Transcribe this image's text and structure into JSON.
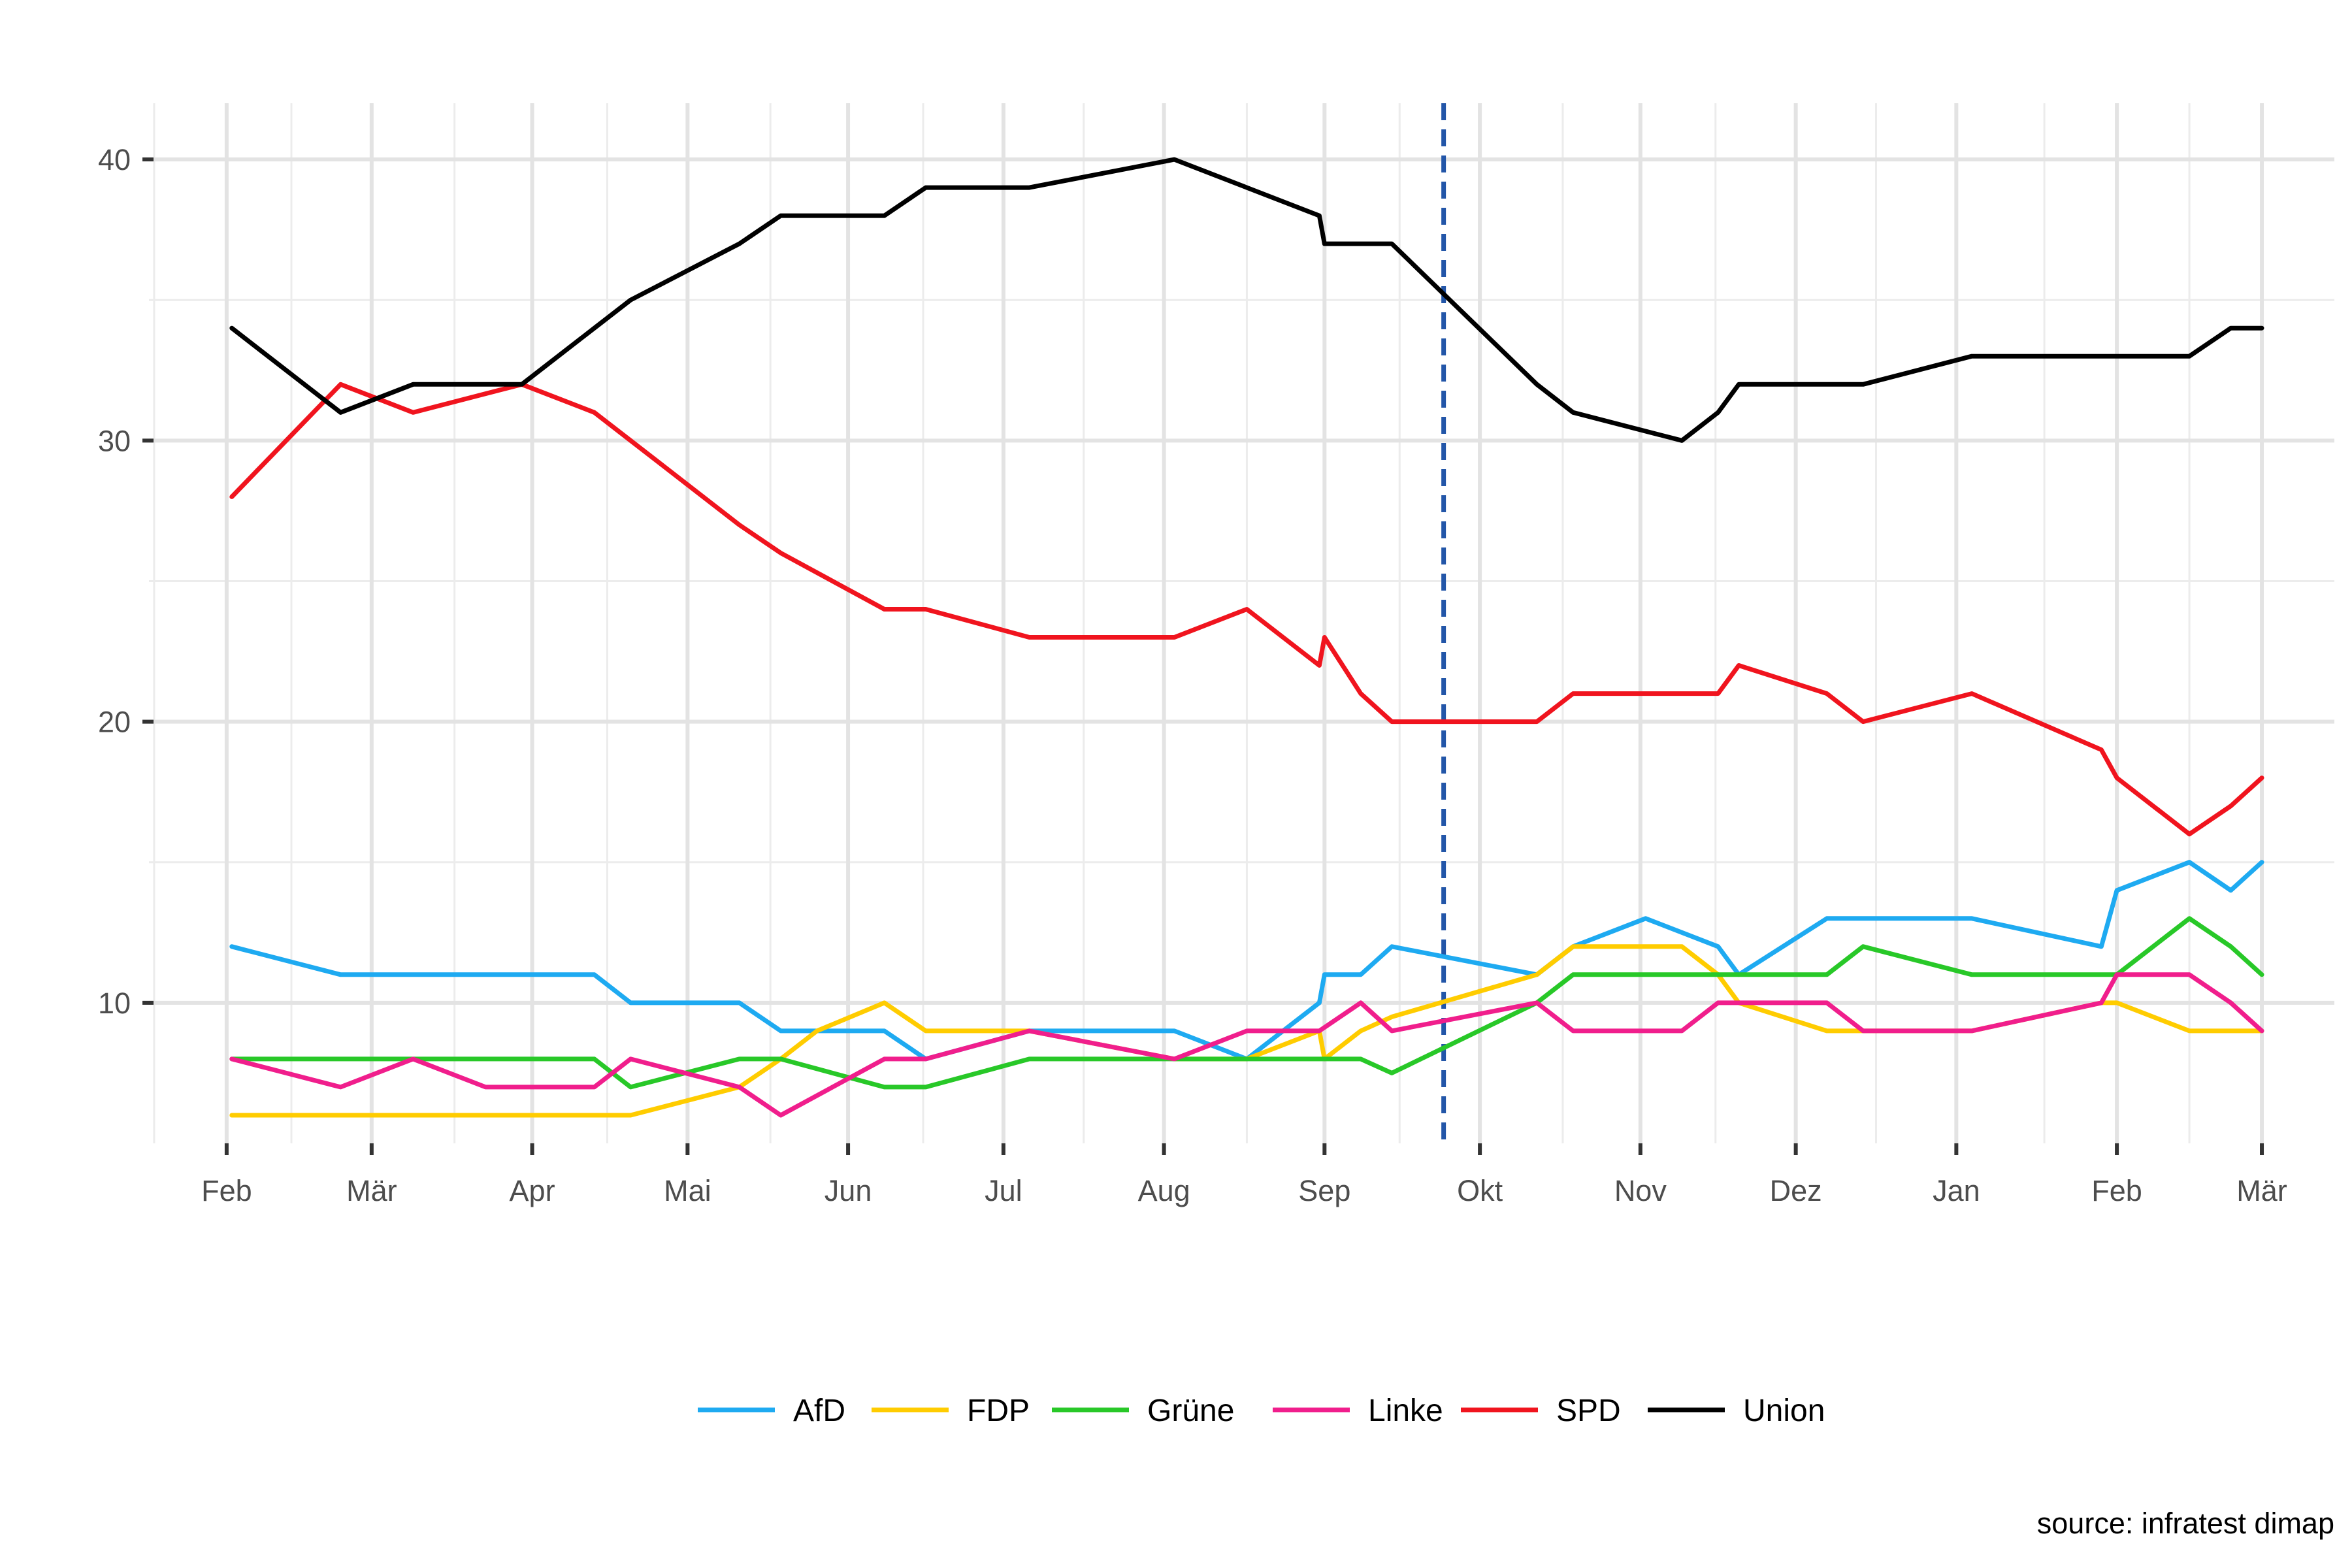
{
  "chart_data": {
    "type": "line",
    "title": "",
    "xlabel": "",
    "ylabel": "",
    "caption": "source: infratest dimap",
    "ylim": [
      5,
      42
    ],
    "y_ticks": [
      10,
      20,
      30,
      40
    ],
    "x_tick_labels": [
      "Feb",
      "Mär",
      "Apr",
      "Mai",
      "Jun",
      "Jul",
      "Aug",
      "Sep",
      "Okt",
      "Nov",
      "Dez",
      "Jan",
      "Feb",
      "Mär"
    ],
    "x_tick_dates": [
      "2017-02-01",
      "2017-03-01",
      "2017-04-01",
      "2017-05-01",
      "2017-06-01",
      "2017-07-01",
      "2017-08-01",
      "2017-09-01",
      "2017-10-01",
      "2017-11-01",
      "2017-12-01",
      "2018-01-01",
      "2018-02-01",
      "2018-03-01"
    ],
    "xlim": [
      "2017-01-17",
      "2018-03-15"
    ],
    "grid": true,
    "legend_position": "bottom",
    "vline": {
      "date": "2017-09-24",
      "color": "#2356A8",
      "style": "dashed"
    },
    "series": [
      {
        "name": "AfD",
        "color": "#1EAAF1",
        "points": [
          [
            "2017-02-02",
            12
          ],
          [
            "2017-02-23",
            11
          ],
          [
            "2017-03-09",
            11
          ],
          [
            "2017-03-30",
            11
          ],
          [
            "2017-04-13",
            11
          ],
          [
            "2017-04-20",
            10
          ],
          [
            "2017-05-11",
            10
          ],
          [
            "2017-05-19",
            9
          ],
          [
            "2017-06-08",
            9
          ],
          [
            "2017-06-16",
            8
          ],
          [
            "2017-07-06",
            9
          ],
          [
            "2017-08-03",
            9
          ],
          [
            "2017-08-17",
            8
          ],
          [
            "2017-08-31",
            10
          ],
          [
            "2017-09-01",
            11
          ],
          [
            "2017-09-08",
            11
          ],
          [
            "2017-09-14",
            12
          ],
          [
            "2017-10-12",
            11
          ],
          [
            "2017-10-19",
            12
          ],
          [
            "2017-11-02",
            13
          ],
          [
            "2017-11-16",
            12
          ],
          [
            "2017-11-20",
            11
          ],
          [
            "2017-12-07",
            13
          ],
          [
            "2017-12-14",
            13
          ],
          [
            "2018-01-04",
            13
          ],
          [
            "2018-01-29",
            12
          ],
          [
            "2018-02-01",
            14
          ],
          [
            "2018-02-15",
            15
          ],
          [
            "2018-02-23",
            14
          ],
          [
            "2018-03-01",
            15
          ]
        ]
      },
      {
        "name": "FDP",
        "color": "#FFCC00",
        "points": [
          [
            "2017-02-02",
            6
          ],
          [
            "2017-02-23",
            6
          ],
          [
            "2017-03-09",
            6
          ],
          [
            "2017-03-30",
            6
          ],
          [
            "2017-04-13",
            6
          ],
          [
            "2017-04-20",
            6
          ],
          [
            "2017-05-11",
            7
          ],
          [
            "2017-05-19",
            8
          ],
          [
            "2017-05-26",
            9
          ],
          [
            "2017-06-08",
            10
          ],
          [
            "2017-06-16",
            9
          ],
          [
            "2017-07-06",
            9
          ],
          [
            "2017-08-03",
            8
          ],
          [
            "2017-08-17",
            8
          ],
          [
            "2017-08-31",
            9
          ],
          [
            "2017-09-01",
            8
          ],
          [
            "2017-09-08",
            9
          ],
          [
            "2017-09-14",
            9.5
          ],
          [
            "2017-10-12",
            11
          ],
          [
            "2017-10-19",
            12
          ],
          [
            "2017-11-09",
            12
          ],
          [
            "2017-11-16",
            11
          ],
          [
            "2017-11-20",
            10
          ],
          [
            "2017-12-07",
            9
          ],
          [
            "2017-12-14",
            9
          ],
          [
            "2018-01-04",
            9
          ],
          [
            "2018-01-29",
            10
          ],
          [
            "2018-02-01",
            10
          ],
          [
            "2018-02-15",
            9
          ],
          [
            "2018-03-01",
            9
          ]
        ]
      },
      {
        "name": "Grüne",
        "color": "#28C828",
        "points": [
          [
            "2017-02-02",
            8
          ],
          [
            "2017-02-23",
            8
          ],
          [
            "2017-03-09",
            8
          ],
          [
            "2017-03-30",
            8
          ],
          [
            "2017-04-13",
            8
          ],
          [
            "2017-04-20",
            7
          ],
          [
            "2017-05-11",
            8
          ],
          [
            "2017-05-19",
            8
          ],
          [
            "2017-06-08",
            7
          ],
          [
            "2017-06-16",
            7
          ],
          [
            "2017-07-06",
            8
          ],
          [
            "2017-08-03",
            8
          ],
          [
            "2017-08-17",
            8
          ],
          [
            "2017-08-31",
            8
          ],
          [
            "2017-09-08",
            8
          ],
          [
            "2017-09-14",
            7.5
          ],
          [
            "2017-10-12",
            10
          ],
          [
            "2017-10-19",
            11
          ],
          [
            "2017-11-09",
            11
          ],
          [
            "2017-11-20",
            11
          ],
          [
            "2017-12-07",
            11
          ],
          [
            "2017-12-14",
            12
          ],
          [
            "2018-01-04",
            11
          ],
          [
            "2018-01-29",
            11
          ],
          [
            "2018-02-01",
            11
          ],
          [
            "2018-02-15",
            13
          ],
          [
            "2018-02-23",
            12
          ],
          [
            "2018-03-01",
            11
          ]
        ]
      },
      {
        "name": "Linke",
        "color": "#F01E8C",
        "points": [
          [
            "2017-02-02",
            8
          ],
          [
            "2017-02-23",
            7
          ],
          [
            "2017-03-09",
            8
          ],
          [
            "2017-03-23",
            7
          ],
          [
            "2017-04-13",
            7
          ],
          [
            "2017-04-20",
            8
          ],
          [
            "2017-05-11",
            7
          ],
          [
            "2017-05-19",
            6
          ],
          [
            "2017-06-08",
            8
          ],
          [
            "2017-06-16",
            8
          ],
          [
            "2017-07-06",
            9
          ],
          [
            "2017-08-03",
            8
          ],
          [
            "2017-08-17",
            9
          ],
          [
            "2017-08-31",
            9
          ],
          [
            "2017-09-08",
            10
          ],
          [
            "2017-09-14",
            9
          ],
          [
            "2017-10-12",
            10
          ],
          [
            "2017-10-19",
            9
          ],
          [
            "2017-11-09",
            9
          ],
          [
            "2017-11-16",
            10
          ],
          [
            "2017-12-07",
            10
          ],
          [
            "2017-12-14",
            9
          ],
          [
            "2018-01-04",
            9
          ],
          [
            "2018-01-29",
            10
          ],
          [
            "2018-02-01",
            11
          ],
          [
            "2018-02-15",
            11
          ],
          [
            "2018-02-23",
            10
          ],
          [
            "2018-03-01",
            9
          ]
        ]
      },
      {
        "name": "SPD",
        "color": "#F0141E",
        "points": [
          [
            "2017-02-02",
            28
          ],
          [
            "2017-02-23",
            32
          ],
          [
            "2017-03-09",
            31
          ],
          [
            "2017-03-30",
            32
          ],
          [
            "2017-04-13",
            31
          ],
          [
            "2017-04-20",
            30
          ],
          [
            "2017-05-11",
            27
          ],
          [
            "2017-05-19",
            26
          ],
          [
            "2017-06-08",
            24
          ],
          [
            "2017-06-16",
            24
          ],
          [
            "2017-07-06",
            23
          ],
          [
            "2017-08-03",
            23
          ],
          [
            "2017-08-17",
            24
          ],
          [
            "2017-08-31",
            22
          ],
          [
            "2017-09-01",
            23
          ],
          [
            "2017-09-08",
            21
          ],
          [
            "2017-09-14",
            20
          ],
          [
            "2017-10-12",
            20
          ],
          [
            "2017-10-19",
            21
          ],
          [
            "2017-11-09",
            21
          ],
          [
            "2017-11-16",
            21
          ],
          [
            "2017-11-20",
            22
          ],
          [
            "2017-12-07",
            21
          ],
          [
            "2017-12-14",
            20
          ],
          [
            "2018-01-04",
            21
          ],
          [
            "2018-01-29",
            19
          ],
          [
            "2018-02-01",
            18
          ],
          [
            "2018-02-15",
            16
          ],
          [
            "2018-02-23",
            17
          ],
          [
            "2018-03-01",
            18
          ]
        ]
      },
      {
        "name": "Union",
        "color": "#000000",
        "points": [
          [
            "2017-02-02",
            34
          ],
          [
            "2017-02-23",
            31
          ],
          [
            "2017-03-09",
            32
          ],
          [
            "2017-03-30",
            32
          ],
          [
            "2017-04-13",
            34
          ],
          [
            "2017-04-20",
            35
          ],
          [
            "2017-05-11",
            37
          ],
          [
            "2017-05-19",
            38
          ],
          [
            "2017-06-08",
            38
          ],
          [
            "2017-06-16",
            39
          ],
          [
            "2017-07-06",
            39
          ],
          [
            "2017-08-03",
            40
          ],
          [
            "2017-08-17",
            39
          ],
          [
            "2017-08-31",
            38
          ],
          [
            "2017-09-01",
            37
          ],
          [
            "2017-09-08",
            37
          ],
          [
            "2017-09-14",
            37
          ],
          [
            "2017-10-12",
            32
          ],
          [
            "2017-10-19",
            31
          ],
          [
            "2017-11-09",
            30
          ],
          [
            "2017-11-16",
            31
          ],
          [
            "2017-11-20",
            32
          ],
          [
            "2017-12-07",
            32
          ],
          [
            "2017-12-14",
            32
          ],
          [
            "2018-01-04",
            33
          ],
          [
            "2018-01-29",
            33
          ],
          [
            "2018-02-01",
            33
          ],
          [
            "2018-02-15",
            33
          ],
          [
            "2018-02-23",
            34
          ],
          [
            "2018-03-01",
            34
          ]
        ]
      }
    ]
  }
}
